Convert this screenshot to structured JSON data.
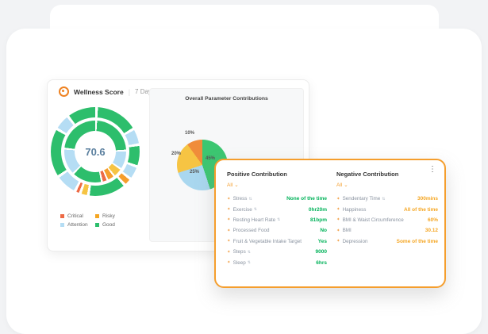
{
  "icons": {
    "menu": "⋮",
    "caret": "⌄",
    "metric": "✦"
  },
  "colors": {
    "accent_border": "#f59e2d",
    "positive_value": "#00b259",
    "negative_value": "#f5a623"
  },
  "wellness_card": {
    "title": "Wellness Score",
    "divider": "|",
    "period": "7 Days",
    "panel_title": "Overall Parameter Contributions",
    "legend": [
      {
        "label": "Critical",
        "style": "background:#ed6a45"
      },
      {
        "label": "Risky",
        "style": "background:#f5a623"
      },
      {
        "label": "Attention",
        "style": "background:#b5ddf4"
      },
      {
        "label": "Good",
        "style": "background:#2dbe6c"
      }
    ]
  },
  "chart_data": [
    {
      "type": "sunburst",
      "title": "Wellness Score",
      "center_value": "70.6",
      "legend": [
        "Critical",
        "Risky",
        "Attention",
        "Good"
      ],
      "rings": {
        "outer": [
          {
            "color": "#2dbe6c",
            "value": 16
          },
          {
            "color": "#b5ddf4",
            "value": 6
          },
          {
            "color": "#2dbe6c",
            "value": 8
          },
          {
            "color": "#b5ddf4",
            "value": 5
          },
          {
            "color": "#f59e2d",
            "value": 3
          },
          {
            "color": "#2dbe6c",
            "value": 14
          },
          {
            "color": "#f6c443",
            "value": 3
          },
          {
            "color": "#ed6a45",
            "value": 2
          },
          {
            "color": "#b5ddf4",
            "value": 8
          },
          {
            "color": "#2dbe6c",
            "value": 18
          },
          {
            "color": "#b5ddf4",
            "value": 6
          },
          {
            "color": "#2dbe6c",
            "value": 11
          }
        ],
        "inner": [
          {
            "color": "#2dbe6c",
            "value": 24
          },
          {
            "color": "#b5ddf4",
            "value": 10
          },
          {
            "color": "#f6c443",
            "value": 5
          },
          {
            "color": "#f59e2d",
            "value": 4
          },
          {
            "color": "#ed6a45",
            "value": 3
          },
          {
            "color": "#2dbe6c",
            "value": 16
          },
          {
            "color": "#b5ddf4",
            "value": 14
          },
          {
            "color": "#2dbe6c",
            "value": 24
          }
        ]
      }
    },
    {
      "type": "pie",
      "title": "Overall Parameter Contributions",
      "slices": [
        {
          "label": "45%",
          "value": 45,
          "color": "#3cc671"
        },
        {
          "label": "25%",
          "value": 25,
          "color": "#a9d7ef"
        },
        {
          "label": "20%",
          "value": 20,
          "color": "#f6c443"
        },
        {
          "label": "10%",
          "value": 10,
          "color": "#f08c3a"
        }
      ]
    }
  ],
  "contribution_card": {
    "positive": {
      "title": "Positive Contribution",
      "filter": "All",
      "rows": [
        {
          "label": "Stress",
          "sort": "⇅",
          "value": "None of the time"
        },
        {
          "label": "Exercise",
          "sort": "⇅",
          "value": "0hr20m"
        },
        {
          "label": "Resting Heart Rate",
          "sort": "⇅",
          "value": "81bpm"
        },
        {
          "label": "Processed Food",
          "sort": "",
          "value": "No"
        },
        {
          "label": "Fruit & Vegetable Intake Target",
          "sort": "",
          "value": "Yes"
        },
        {
          "label": "Steps",
          "sort": "⇅",
          "value": "9000"
        },
        {
          "label": "Sleep",
          "sort": "⇅",
          "value": "6hrs"
        }
      ]
    },
    "negative": {
      "title": "Negative Contribution",
      "filter": "All",
      "rows": [
        {
          "label": "Sendentary Time",
          "sort": "⇅",
          "value": "300mins"
        },
        {
          "label": "Happiness",
          "sort": "",
          "value": "All of the time"
        },
        {
          "label": "BMI & Waist Circumference",
          "sort": "",
          "value": "60%"
        },
        {
          "label": "BMI",
          "sort": "",
          "value": "30.12"
        },
        {
          "label": "Depression",
          "sort": "",
          "value": "Some of the time"
        }
      ]
    }
  }
}
